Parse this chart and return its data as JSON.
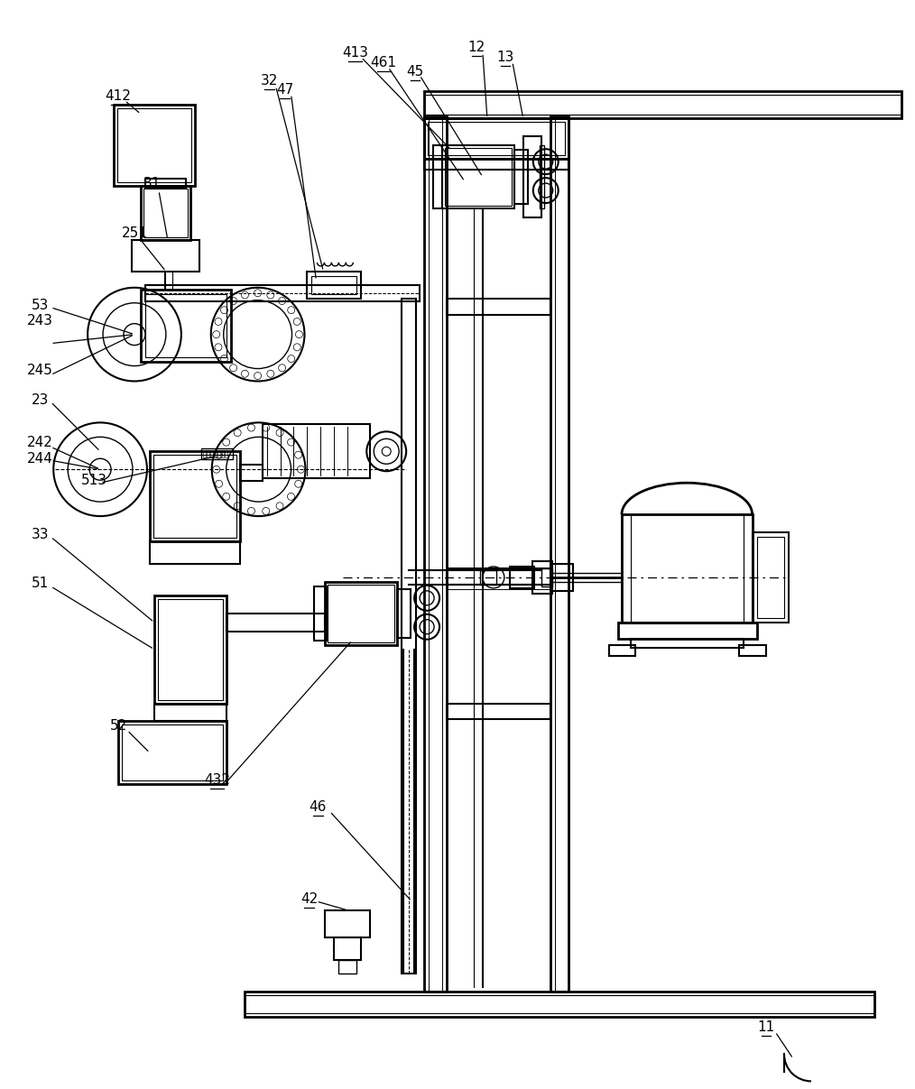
{
  "bg_color": "#ffffff",
  "line_color": "#000000",
  "figsize": [
    10.14,
    12.07
  ],
  "dpi": 100,
  "label_fontsize": 11,
  "labels_underlined": [
    "11",
    "12",
    "13",
    "31",
    "32",
    "42",
    "45",
    "46",
    "47",
    "412",
    "413",
    "432",
    "461"
  ],
  "labels_plain": [
    "23",
    "33",
    "51",
    "52",
    "53",
    "242",
    "243",
    "244",
    "245",
    "251",
    "513"
  ]
}
